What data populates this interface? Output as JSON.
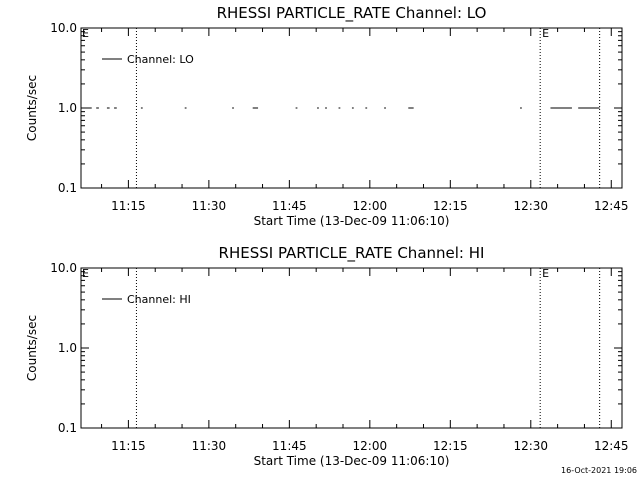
{
  "timestamp": "16-Oct-2021 19:06",
  "chart_data": [
    {
      "type": "line",
      "title": "RHESSI PARTICLE_RATE Channel: LO",
      "xlabel": "Start Time (13-Dec-09 11:06:10)",
      "ylabel": "Counts/sec",
      "yscale": "log",
      "ylim": [
        0.1,
        10.0
      ],
      "yticks": [
        "0.1",
        "1.0",
        "10.0"
      ],
      "xlim": [
        "11:06:10",
        "12:47:00"
      ],
      "xticks": [
        "11:15",
        "11:30",
        "11:45",
        "12:00",
        "12:15",
        "12:30",
        "12:45"
      ],
      "legend_position": "top-left",
      "series": [
        {
          "name": "Channel: LO",
          "color": "#000000",
          "segments": [
            {
              "start": "11:06:10",
              "end": "11:06:50",
              "value": 1.0
            },
            {
              "start": "11:07:30",
              "end": "11:08:10",
              "value": 1.0
            },
            {
              "start": "11:09:00",
              "end": "11:09:30",
              "value": 1.0
            },
            {
              "start": "11:11:00",
              "end": "11:11:30",
              "value": 1.0
            },
            {
              "start": "11:12:20",
              "end": "11:12:50",
              "value": 1.0
            },
            {
              "start": "11:17:20",
              "end": "11:17:40",
              "value": 1.0
            },
            {
              "start": "11:25:30",
              "end": "11:25:50",
              "value": 1.0
            },
            {
              "start": "11:34:20",
              "end": "11:34:40",
              "value": 1.0
            },
            {
              "start": "11:38:10",
              "end": "11:39:10",
              "value": 1.0
            },
            {
              "start": "11:46:10",
              "end": "11:46:30",
              "value": 1.0
            },
            {
              "start": "11:50:10",
              "end": "11:50:30",
              "value": 1.0
            },
            {
              "start": "11:51:40",
              "end": "11:52:00",
              "value": 1.0
            },
            {
              "start": "11:54:10",
              "end": "11:54:30",
              "value": 1.0
            },
            {
              "start": "11:56:40",
              "end": "11:57:00",
              "value": 1.0
            },
            {
              "start": "11:59:10",
              "end": "11:59:30",
              "value": 1.0
            },
            {
              "start": "12:02:40",
              "end": "12:03:00",
              "value": 1.0
            },
            {
              "start": "12:07:10",
              "end": "12:08:10",
              "value": 1.0
            },
            {
              "start": "12:28:00",
              "end": "12:28:20",
              "value": 1.0
            },
            {
              "start": "12:33:40",
              "end": "12:37:40",
              "value": 1.0
            },
            {
              "start": "12:38:50",
              "end": "12:42:50",
              "value": 1.0
            }
          ]
        }
      ],
      "vertical_lines": [
        {
          "x": "11:16:30",
          "label": ""
        },
        {
          "x": "12:31:45",
          "label": "E"
        },
        {
          "x": "12:42:50",
          "label": ""
        }
      ],
      "corner_markers": [
        "E"
      ]
    },
    {
      "type": "line",
      "title": "RHESSI PARTICLE_RATE Channel: HI",
      "xlabel": "Start Time (13-Dec-09 11:06:10)",
      "ylabel": "Counts/sec",
      "yscale": "log",
      "ylim": [
        0.1,
        10.0
      ],
      "yticks": [
        "0.1",
        "1.0",
        "10.0"
      ],
      "xlim": [
        "11:06:10",
        "12:47:00"
      ],
      "xticks": [
        "11:15",
        "11:30",
        "11:45",
        "12:00",
        "12:15",
        "12:30",
        "12:45"
      ],
      "legend_position": "top-left",
      "series": [
        {
          "name": "Channel: HI",
          "color": "#000000",
          "segments": []
        }
      ],
      "vertical_lines": [
        {
          "x": "11:16:30",
          "label": ""
        },
        {
          "x": "12:31:45",
          "label": "E"
        },
        {
          "x": "12:42:50",
          "label": ""
        }
      ],
      "corner_markers": [
        "E"
      ]
    }
  ]
}
